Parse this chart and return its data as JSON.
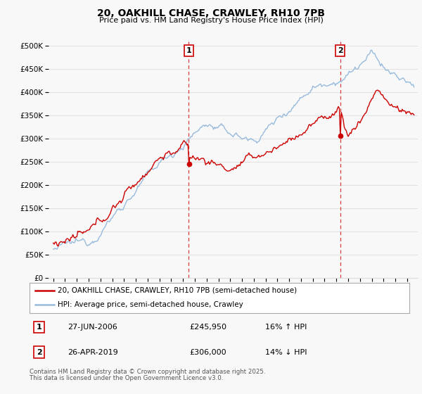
{
  "title_line1": "20, OAKHILL CHASE, CRAWLEY, RH10 7PB",
  "title_line2": "Price paid vs. HM Land Registry's House Price Index (HPI)",
  "legend_line1": "20, OAKHILL CHASE, CRAWLEY, RH10 7PB (semi-detached house)",
  "legend_line2": "HPI: Average price, semi-detached house, Crawley",
  "table_row1": [
    "1",
    "27-JUN-2006",
    "£245,950",
    "16% ↑ HPI"
  ],
  "table_row2": [
    "2",
    "26-APR-2019",
    "£306,000",
    "14% ↓ HPI"
  ],
  "footnote1": "Contains HM Land Registry data © Crown copyright and database right 2025.",
  "footnote2": "This data is licensed under the Open Government Licence v3.0.",
  "vline1_date": 2006.49,
  "vline2_date": 2019.32,
  "sale1_price": 245950,
  "sale2_price": 306000,
  "red_color": "#cc0000",
  "blue_color": "#99bbdd",
  "vline_color": "#cc0000",
  "background_color": "#f8f8f8",
  "grid_color": "#dddddd",
  "ylim": [
    0,
    510000
  ],
  "xlim": [
    1994.6,
    2025.9
  ]
}
